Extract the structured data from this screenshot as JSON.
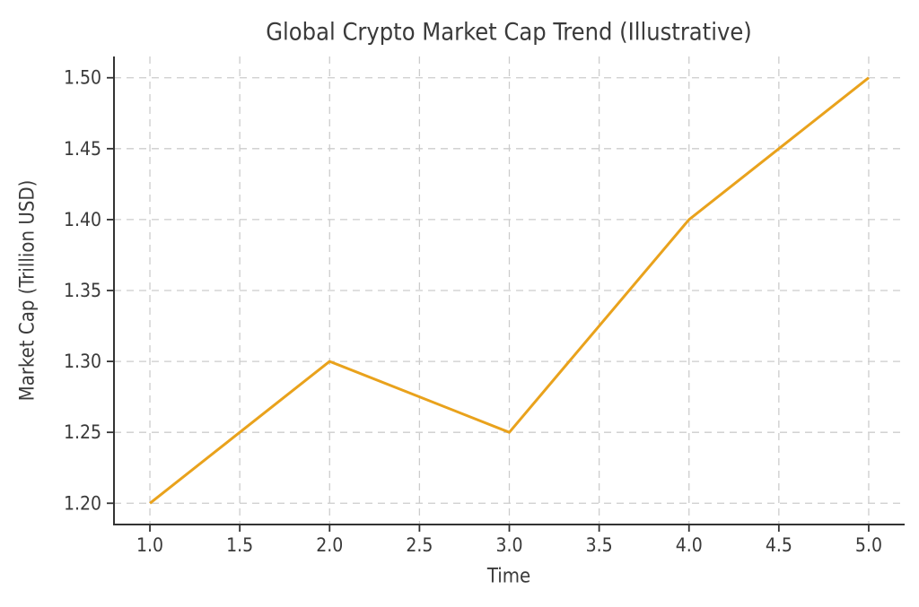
{
  "chart_data": {
    "type": "line",
    "title": "Global Crypto Market Cap Trend (Illustrative)",
    "xlabel": "Time",
    "ylabel": "Market Cap (Trillion USD)",
    "x": [
      1.0,
      2.0,
      3.0,
      4.0,
      5.0
    ],
    "y": [
      1.2,
      1.3,
      1.25,
      1.4,
      1.5
    ],
    "xlim": [
      0.8,
      5.2
    ],
    "ylim": [
      1.185,
      1.515
    ],
    "xticks": {
      "values": [
        1.0,
        1.5,
        2.0,
        2.5,
        3.0,
        3.5,
        4.0,
        4.5,
        5.0
      ],
      "labels": [
        "1.0",
        "1.5",
        "2.0",
        "2.5",
        "3.0",
        "3.5",
        "4.0",
        "4.5",
        "5.0"
      ]
    },
    "yticks": {
      "values": [
        1.2,
        1.25,
        1.3,
        1.35,
        1.4,
        1.45,
        1.5
      ],
      "labels": [
        "1.20",
        "1.25",
        "1.30",
        "1.35",
        "1.40",
        "1.45",
        "1.50"
      ]
    },
    "grid": {
      "on": true,
      "style": "dashed",
      "color": "#cccccc"
    },
    "legend_position": "none",
    "line_color": "#E9A21C",
    "line_width": 3,
    "spine_color": "#333333",
    "text_color": "#3a3a3a"
  }
}
